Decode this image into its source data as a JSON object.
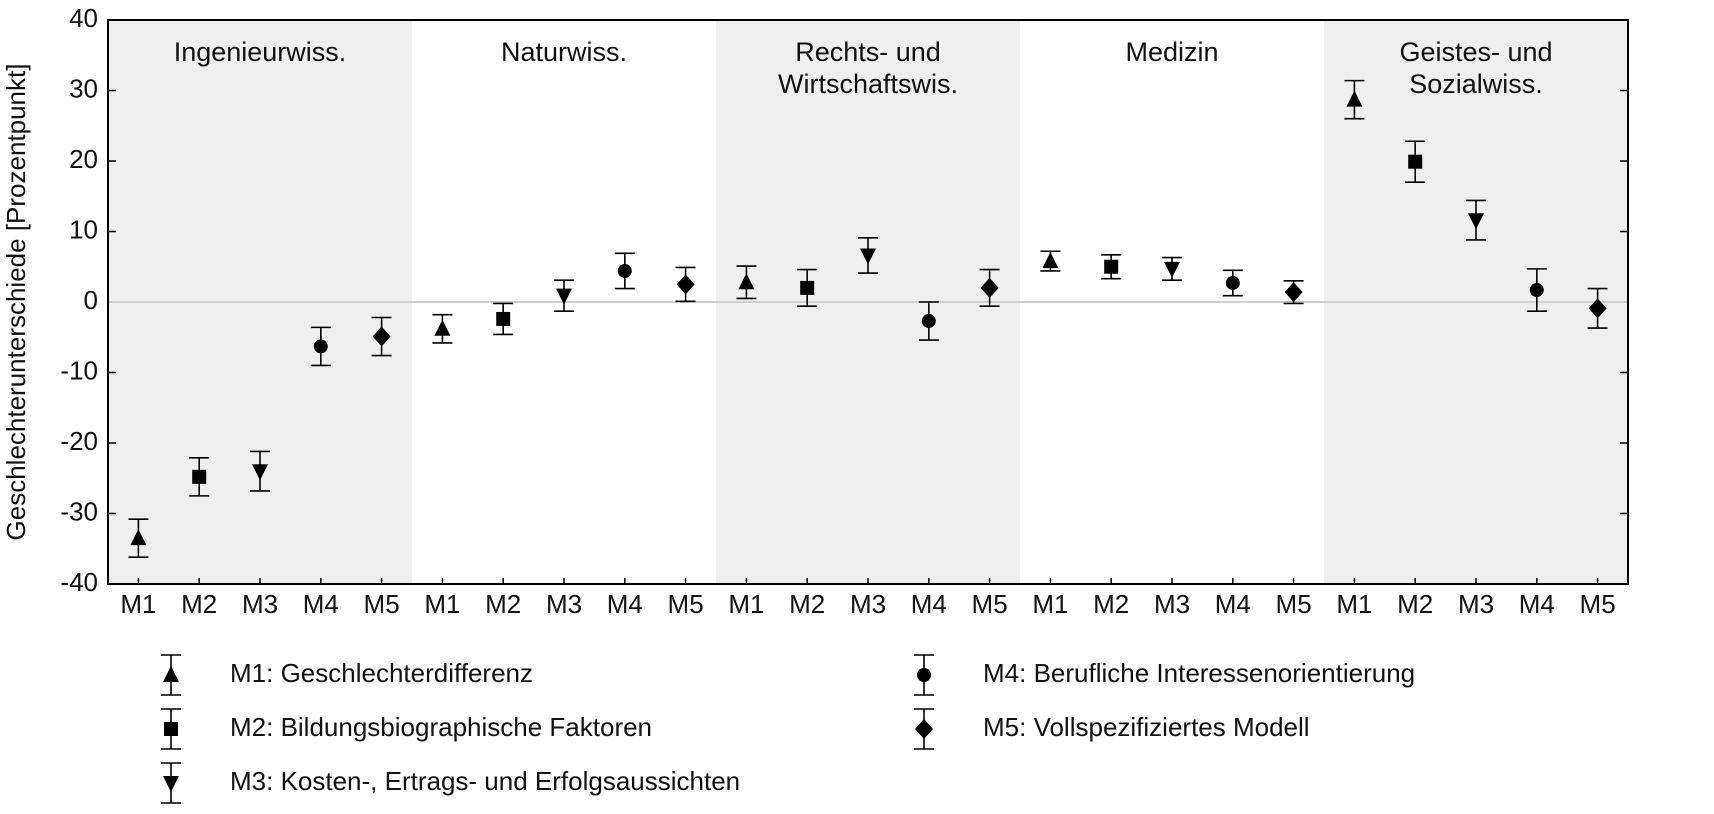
{
  "chart_data": {
    "type": "errorbar",
    "ylabel": "Geschlechterunterschiede [Prozentpunkt]",
    "groups": [
      "Ingenieurwiss.",
      "Naturwiss.",
      "Rechts- und\nWirtschaftswis.",
      "Medizin",
      "Geistes- und Sozialwiss."
    ],
    "categories": [
      "M1",
      "M2",
      "M3",
      "M4",
      "M5"
    ],
    "ylim": [
      -40,
      40
    ],
    "yticks": [
      -40,
      -30,
      -20,
      -10,
      0,
      10,
      20,
      30,
      40
    ],
    "zero_line": true,
    "shade_color": "#efefef",
    "series": [
      {
        "name": "M1: Geschlechterdifferenz",
        "marker": "triangle-up",
        "color": "#000000",
        "values": [
          -33.5,
          -3.8,
          2.8,
          5.8,
          28.7
        ],
        "errors": [
          2.7,
          2.0,
          2.3,
          1.4,
          2.7
        ]
      },
      {
        "name": "M2: Bildungsbiographische Faktoren",
        "marker": "square",
        "color": "#000000",
        "values": [
          -24.8,
          -2.4,
          2.0,
          5.0,
          19.9
        ],
        "errors": [
          2.7,
          2.2,
          2.6,
          1.7,
          2.9
        ]
      },
      {
        "name": "M3: Kosten-, Ertrags- und Erfolgsaussichten",
        "marker": "triangle-down",
        "color": "#000000",
        "values": [
          -24.0,
          0.9,
          6.6,
          4.7,
          11.6
        ],
        "errors": [
          2.8,
          2.2,
          2.5,
          1.6,
          2.8
        ]
      },
      {
        "name": "M4: Berufliche Interessenorientierung",
        "marker": "circle",
        "color": "#000000",
        "values": [
          -6.3,
          4.4,
          -2.7,
          2.7,
          1.7
        ],
        "errors": [
          2.7,
          2.5,
          2.7,
          1.8,
          3.0
        ]
      },
      {
        "name": "M5: Vollspezifiziertes Modell",
        "marker": "diamond",
        "color": "#000000",
        "values": [
          -4.9,
          2.5,
          2.0,
          1.4,
          -0.9
        ],
        "errors": [
          2.7,
          2.4,
          2.6,
          1.6,
          2.8
        ]
      }
    ]
  }
}
